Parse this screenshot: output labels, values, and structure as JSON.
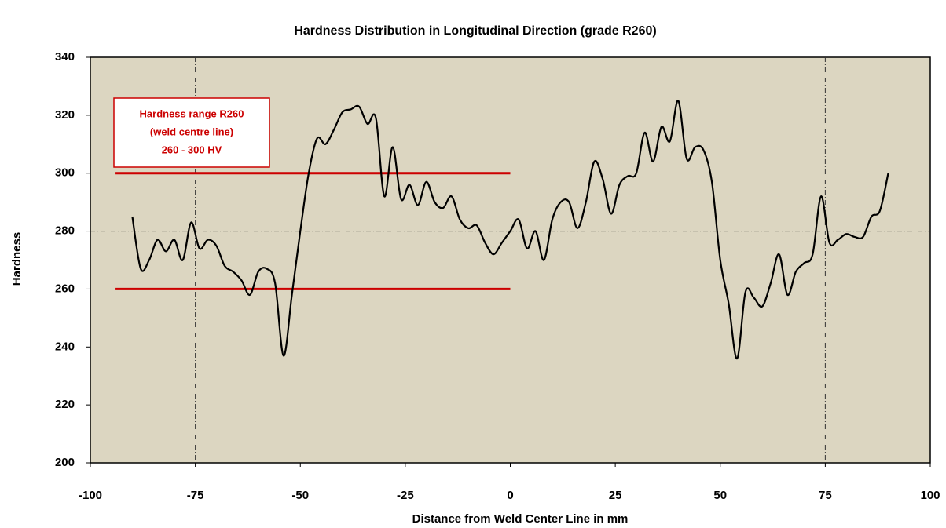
{
  "chart_data": {
    "type": "line",
    "title": "Hardness Distribution in Longitudinal Direction (grade R260)",
    "xlabel": "Distance from Weld Center Line in mm",
    "ylabel": "Hardness",
    "xlim": [
      -100,
      100
    ],
    "ylim": [
      200,
      340
    ],
    "xticks": [
      -100,
      -75,
      -50,
      -25,
      0,
      25,
      50,
      75,
      100
    ],
    "yticks": [
      200,
      220,
      240,
      260,
      280,
      300,
      320,
      340
    ],
    "xgrid": [
      -75,
      75
    ],
    "ygrid": [
      280
    ],
    "background": "#dcd6c1",
    "series": [
      {
        "color": "#000000",
        "x": [
          -90,
          -88,
          -86,
          -84,
          -82,
          -80,
          -78,
          -76,
          -74,
          -72,
          -70,
          -68,
          -66,
          -64,
          -62,
          -60,
          -58,
          -56,
          -54,
          -52,
          -50,
          -48,
          -46,
          -44,
          -42,
          -40,
          -38,
          -36,
          -34,
          -32,
          -30,
          -28,
          -26,
          -24,
          -22,
          -20,
          -18,
          -16,
          -14,
          -12,
          -10,
          -8,
          -6,
          -4,
          -2,
          0,
          2,
          4,
          6,
          8,
          10,
          12,
          14,
          16,
          18,
          20,
          22,
          24,
          26,
          28,
          30,
          32,
          34,
          36,
          38,
          40,
          42,
          44,
          46,
          48,
          50,
          52,
          54,
          56,
          58,
          60,
          62,
          64,
          66,
          68,
          70,
          72,
          74,
          76,
          78,
          80,
          82,
          84,
          86,
          88,
          90
        ],
        "values": [
          285,
          267,
          270,
          277,
          273,
          277,
          270,
          283,
          274,
          277,
          275,
          268,
          266,
          263,
          258,
          266,
          267,
          262,
          237,
          258,
          280,
          300,
          312,
          310,
          315,
          321,
          322,
          323,
          317,
          319,
          292,
          309,
          291,
          296,
          289,
          297,
          290,
          288,
          292,
          284,
          281,
          282,
          276,
          272,
          276,
          280,
          284,
          274,
          280,
          270,
          284,
          290,
          290,
          281,
          290,
          304,
          298,
          286,
          296,
          299,
          300,
          314,
          304,
          316,
          311,
          325,
          305,
          309,
          308,
          297,
          270,
          255,
          236,
          259,
          257,
          254,
          262,
          272,
          258,
          266,
          269,
          272,
          292,
          276,
          277,
          279,
          278,
          278,
          285,
          287,
          300
        ]
      }
    ],
    "reference_lines": [
      {
        "color": "#cc0000",
        "y": 300,
        "x": [
          -94,
          0
        ]
      },
      {
        "color": "#cc0000",
        "y": 260,
        "x": [
          -94,
          0
        ]
      }
    ],
    "annotation": [
      "Hardness range R260",
      "(weld centre line)",
      "260 - 300 HV"
    ]
  }
}
